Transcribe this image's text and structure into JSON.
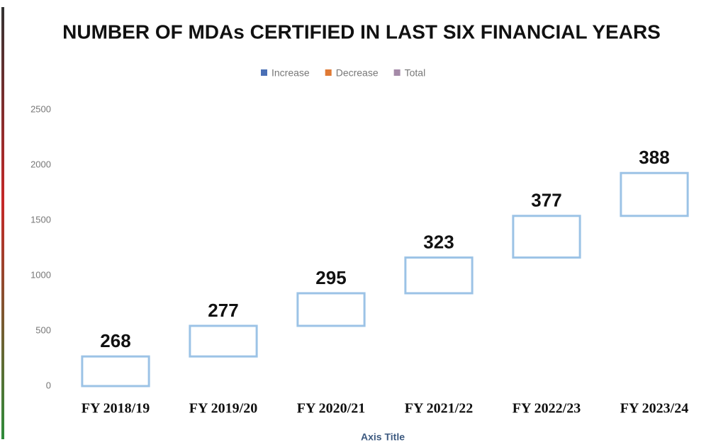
{
  "chart_data": {
    "type": "waterfall",
    "title": "NUMBER OF MDAs CERTIFIED IN LAST  SIX FINANCIAL YEARS",
    "legend": [
      {
        "name": "Increase",
        "color": "#4a6fb5"
      },
      {
        "name": "Decrease",
        "color": "#e07a35"
      },
      {
        "name": "Total",
        "color": "#a58aa8"
      }
    ],
    "categories": [
      "FY 2018/19",
      "FY 2019/20",
      "FY 2020/21",
      "FY 2021/22",
      "FY 2022/23",
      "FY 2023/24"
    ],
    "values": [
      268,
      277,
      295,
      323,
      377,
      388
    ],
    "color": "#ffffff",
    "border_color": "#9cc3e6",
    "ylim": [
      0,
      2500
    ],
    "yticks": [
      0,
      500,
      1000,
      1500,
      2000,
      2500
    ],
    "x_axis_title": "Axis Title",
    "grid": false
  }
}
